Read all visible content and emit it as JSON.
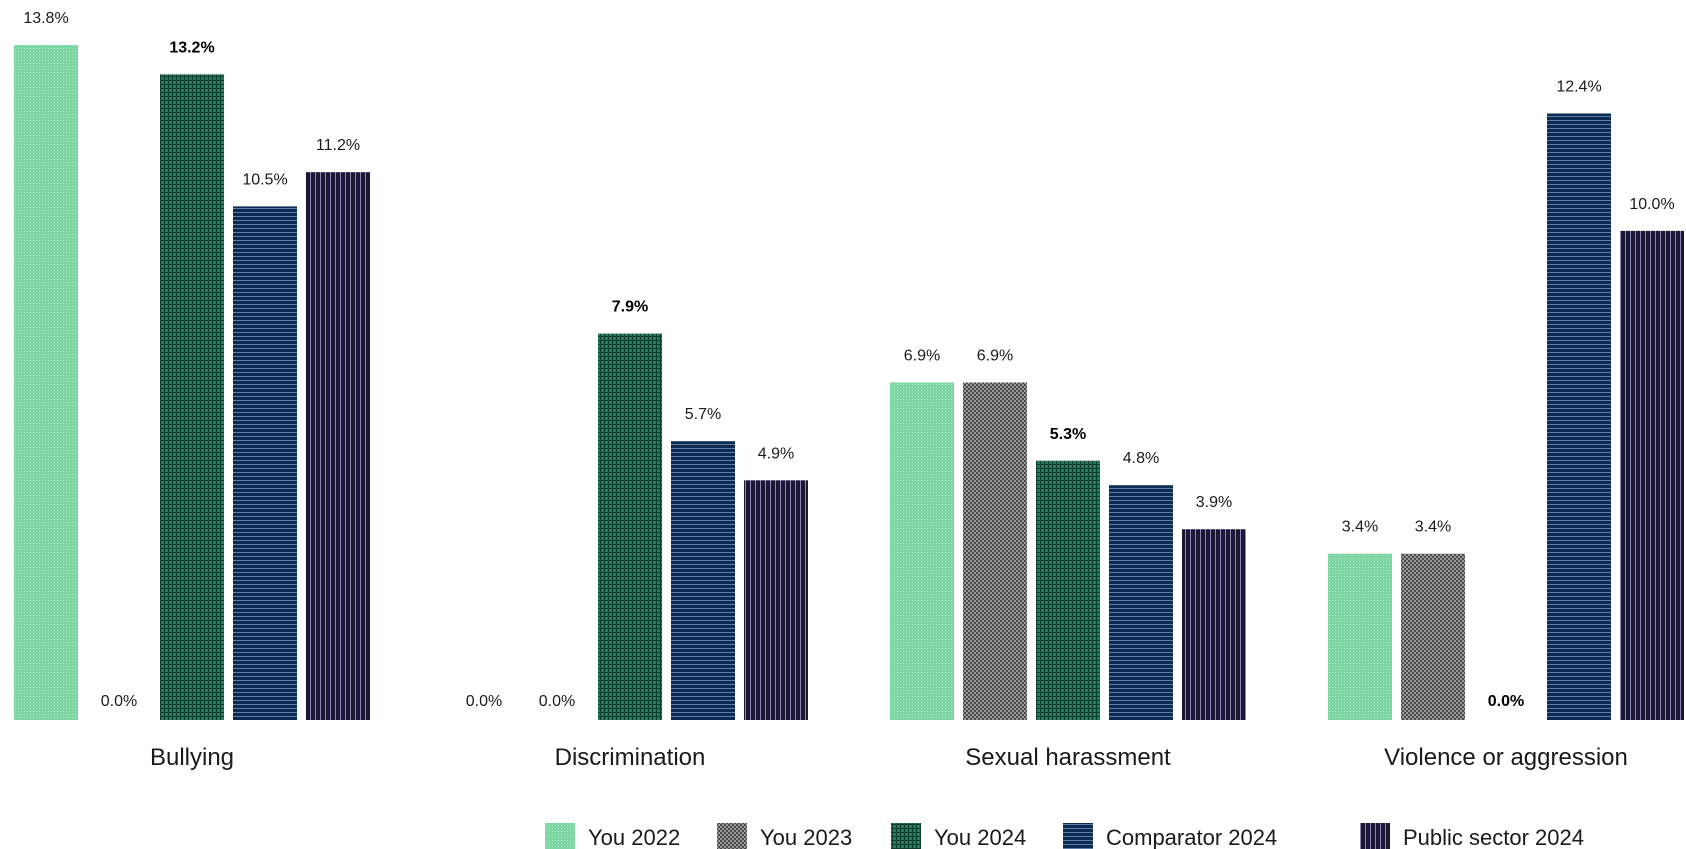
{
  "chart_data": {
    "type": "bar",
    "categories": [
      "Bullying",
      "Discrimination",
      "Sexual harassment",
      "Violence or aggression"
    ],
    "ylim": [
      0,
      13.8
    ],
    "grid": false,
    "legend_position": "bottom-right",
    "series": [
      {
        "name": "You 2022",
        "values": [
          13.8,
          0.0,
          6.9,
          3.4
        ],
        "labels": [
          "13.8%",
          "0.0%",
          "6.9%",
          "3.4%"
        ],
        "bold": false,
        "color": "#7ed3a4",
        "pattern": "dots"
      },
      {
        "name": "You 2023",
        "values": [
          0.0,
          0.0,
          6.9,
          3.4
        ],
        "labels": [
          "0.0%",
          "0.0%",
          "6.9%",
          "3.4%"
        ],
        "bold": false,
        "color": "#8a8a8a",
        "pattern": "checker"
      },
      {
        "name": "You 2024",
        "values": [
          13.2,
          7.9,
          5.3,
          0.0
        ],
        "labels": [
          "13.2%",
          "7.9%",
          "5.3%",
          "0.0%"
        ],
        "bold": true,
        "color": "#1e6b52",
        "pattern": "grid"
      },
      {
        "name": "Comparator 2024",
        "values": [
          10.5,
          5.7,
          4.8,
          12.4
        ],
        "labels": [
          "10.5%",
          "5.7%",
          "4.8%",
          "12.4%"
        ],
        "bold": false,
        "color": "#0f2f59",
        "pattern": "hlines"
      },
      {
        "name": "Public sector 2024",
        "values": [
          11.2,
          4.9,
          3.9,
          10.0
        ],
        "labels": [
          "11.2%",
          "4.9%",
          "3.9%",
          "10.0%"
        ],
        "bold": false,
        "color": "#1b1836",
        "pattern": "vlines"
      }
    ]
  }
}
